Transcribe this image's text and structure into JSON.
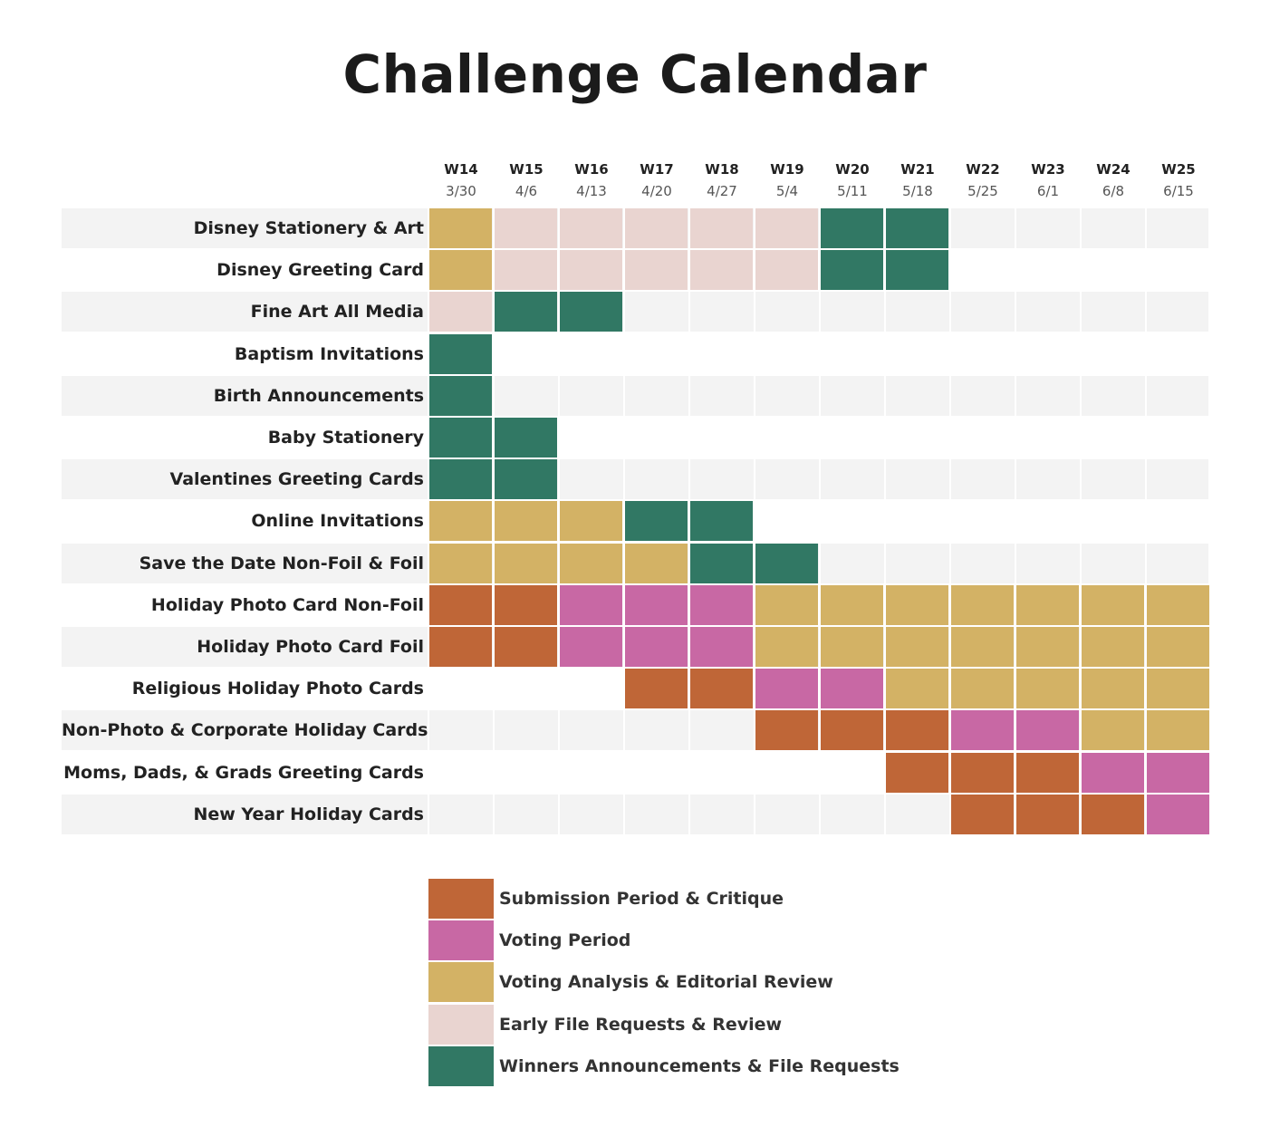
{
  "title": "Challenge Calendar",
  "chart_data": {
    "type": "table",
    "weeks": [
      {
        "week": "W14",
        "date": "3/30"
      },
      {
        "week": "W15",
        "date": "4/6"
      },
      {
        "week": "W16",
        "date": "4/13"
      },
      {
        "week": "W17",
        "date": "4/20"
      },
      {
        "week": "W18",
        "date": "4/27"
      },
      {
        "week": "W19",
        "date": "5/4"
      },
      {
        "week": "W20",
        "date": "5/11"
      },
      {
        "week": "W21",
        "date": "5/18"
      },
      {
        "week": "W22",
        "date": "5/25"
      },
      {
        "week": "W23",
        "date": "6/1"
      },
      {
        "week": "W24",
        "date": "6/8"
      },
      {
        "week": "W25",
        "date": "6/15"
      }
    ],
    "phases": {
      "S": {
        "label": "Submission Period & Critique",
        "color": "#BF6637"
      },
      "V": {
        "label": "Voting Period",
        "color": "#C868A4"
      },
      "A": {
        "label": "Voting Analysis & Editorial Review",
        "color": "#D3B265"
      },
      "E": {
        "label": "Early File Requests & Review",
        "color": "#E9D4D0"
      },
      "W": {
        "label": "Winners Announcements & File Requests",
        "color": "#317864"
      }
    },
    "legend_order": [
      "S",
      "V",
      "A",
      "E",
      "W"
    ],
    "rows": [
      {
        "name": "Disney Stationery & Art",
        "cells": [
          "A",
          "E",
          "E",
          "E",
          "E",
          "E",
          "W",
          "W",
          "",
          "",
          "",
          ""
        ]
      },
      {
        "name": "Disney Greeting Card",
        "cells": [
          "A",
          "E",
          "E",
          "E",
          "E",
          "E",
          "W",
          "W",
          "",
          "",
          "",
          ""
        ]
      },
      {
        "name": "Fine Art All Media",
        "cells": [
          "E",
          "W",
          "W",
          "",
          "",
          "",
          "",
          "",
          "",
          "",
          "",
          ""
        ]
      },
      {
        "name": "Baptism Invitations",
        "cells": [
          "W",
          "",
          "",
          "",
          "",
          "",
          "",
          "",
          "",
          "",
          "",
          ""
        ]
      },
      {
        "name": "Birth Announcements",
        "cells": [
          "W",
          "",
          "",
          "",
          "",
          "",
          "",
          "",
          "",
          "",
          "",
          ""
        ]
      },
      {
        "name": "Baby Stationery",
        "cells": [
          "W",
          "W",
          "",
          "",
          "",
          "",
          "",
          "",
          "",
          "",
          "",
          ""
        ]
      },
      {
        "name": "Valentines Greeting Cards",
        "cells": [
          "W",
          "W",
          "",
          "",
          "",
          "",
          "",
          "",
          "",
          "",
          "",
          ""
        ]
      },
      {
        "name": "Online Invitations",
        "cells": [
          "A",
          "A",
          "A",
          "W",
          "W",
          "",
          "",
          "",
          "",
          "",
          "",
          ""
        ]
      },
      {
        "name": "Save the Date Non-Foil & Foil",
        "cells": [
          "A",
          "A",
          "A",
          "A",
          "W",
          "W",
          "",
          "",
          "",
          "",
          "",
          ""
        ]
      },
      {
        "name": "Holiday Photo Card Non-Foil",
        "cells": [
          "S",
          "S",
          "V",
          "V",
          "V",
          "A",
          "A",
          "A",
          "A",
          "A",
          "A",
          "A"
        ]
      },
      {
        "name": "Holiday Photo Card Foil",
        "cells": [
          "S",
          "S",
          "V",
          "V",
          "V",
          "A",
          "A",
          "A",
          "A",
          "A",
          "A",
          "A"
        ]
      },
      {
        "name": "Religious Holiday Photo Cards",
        "cells": [
          "",
          "",
          "",
          "S",
          "S",
          "V",
          "V",
          "A",
          "A",
          "A",
          "A",
          "A"
        ]
      },
      {
        "name": "Non-Photo & Corporate Holiday Cards",
        "cells": [
          "",
          "",
          "",
          "",
          "",
          "S",
          "S",
          "S",
          "V",
          "V",
          "A",
          "A"
        ]
      },
      {
        "name": "Moms, Dads, & Grads Greeting Cards",
        "cells": [
          "",
          "",
          "",
          "",
          "",
          "",
          "",
          "S",
          "S",
          "S",
          "V",
          "V"
        ]
      },
      {
        "name": "New Year Holiday Cards",
        "cells": [
          "",
          "",
          "",
          "",
          "",
          "",
          "",
          "",
          "S",
          "S",
          "S",
          "V"
        ]
      }
    ]
  }
}
